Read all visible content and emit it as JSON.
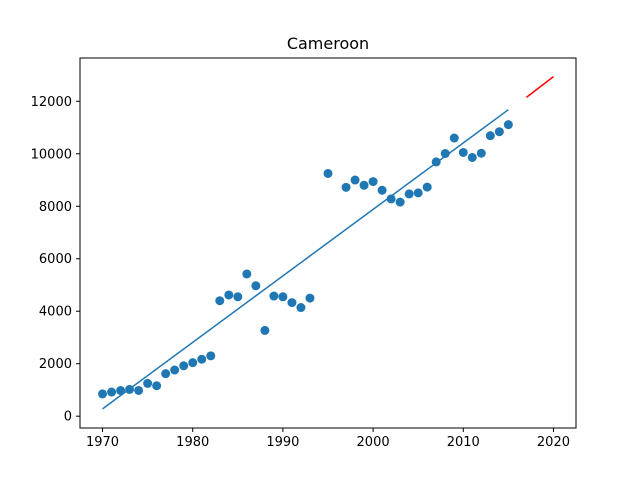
{
  "chart_data": {
    "type": "scatter",
    "title": "Cameroon",
    "xlabel": "",
    "ylabel": "",
    "xlim": [
      1967.5,
      2022.5
    ],
    "ylim": [
      -450,
      13650
    ],
    "x_ticks": [
      1970,
      1980,
      1990,
      2000,
      2010,
      2020
    ],
    "y_ticks": [
      0,
      2000,
      4000,
      6000,
      8000,
      10000,
      12000
    ],
    "grid": false,
    "colors": {
      "scatter": "#1f77b4",
      "fit": "#1f77b4",
      "projection": "#ff0000"
    },
    "series": [
      {
        "type": "scatter",
        "x": [
          1970,
          1971,
          1972,
          1973,
          1974,
          1975,
          1976,
          1977,
          1978,
          1979,
          1980,
          1981,
          1982,
          1983,
          1984,
          1985,
          1986,
          1987,
          1988,
          1989,
          1990,
          1991,
          1992,
          1993,
          1995,
          1997,
          1998,
          1999,
          2000,
          2001,
          2002,
          2003,
          2004,
          2005,
          2006,
          2007,
          2008,
          2009,
          2010,
          2011,
          2012,
          2013,
          2014,
          2015
        ],
        "y": [
          850,
          920,
          980,
          1020,
          980,
          1250,
          1160,
          1620,
          1760,
          1920,
          2040,
          2170,
          2300,
          4400,
          4620,
          4550,
          5420,
          4970,
          3270,
          4580,
          4550,
          4330,
          4140,
          4500,
          9250,
          8720,
          9000,
          8800,
          8940,
          8610,
          8280,
          8160,
          8470,
          8510,
          8730,
          9690,
          10010,
          10600,
          10050,
          9860,
          10020,
          10690,
          10840,
          11110
        ]
      },
      {
        "type": "line",
        "x": [
          1970,
          2015
        ],
        "y": [
          280,
          11680
        ]
      },
      {
        "type": "line",
        "x": [
          2017,
          2020
        ],
        "y": [
          12150,
          12940
        ]
      }
    ]
  }
}
